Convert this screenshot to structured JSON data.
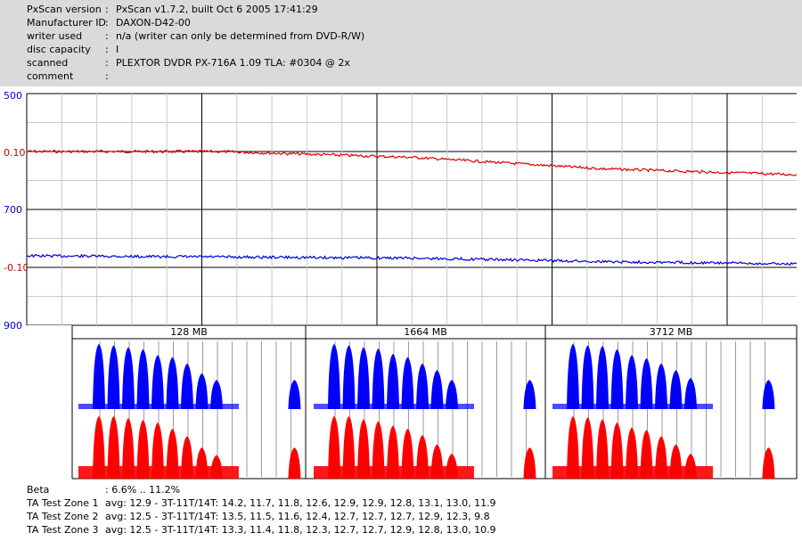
{
  "header": {
    "rows": [
      {
        "label": "PxScan version",
        "value": "PxScan v1.7.2, built Oct  6 2005 17:41:29"
      },
      {
        "label": "Manufacturer ID",
        "value": "DAXON-D42-00"
      },
      {
        "label": "writer used",
        "value": "n/a (writer can only be determined from DVD-R/W)"
      },
      {
        "label": "disc capacity",
        "value": "I"
      },
      {
        "label": "scanned",
        "value": "PLEXTOR DVDR PX-716A 1.09 TLA: #0304 @ 2x"
      },
      {
        "label": "comment",
        "value": ""
      }
    ]
  },
  "chart_data": [
    {
      "type": "line",
      "y_labels": [
        {
          "text": "500",
          "color": "#0000cc"
        },
        {
          "text": "0.10",
          "color": "#cc0000"
        },
        {
          "text": "700",
          "color": "#0000cc"
        },
        {
          "text": "-0.10",
          "color": "#cc0000"
        },
        {
          "text": "900",
          "color": "#0000cc"
        }
      ],
      "series": [
        {
          "color": "#e00000",
          "x": [
            0,
            0.25,
            0.5,
            0.75,
            1.0
          ],
          "y": [
            0.1,
            0.1,
            0.09,
            0.07,
            0.06
          ]
        },
        {
          "color": "#0000e0",
          "x": [
            0,
            0.25,
            0.5,
            0.75,
            1.0
          ],
          "y": [
            780,
            782,
            784,
            790,
            794
          ]
        }
      ],
      "grid": true
    },
    {
      "type": "bar",
      "zones": [
        {
          "label": "128 MB",
          "blue": [
            1.0,
            0.98,
            0.95,
            0.92,
            0.83,
            0.8,
            0.7,
            0.55,
            0.45
          ],
          "red": [
            1.0,
            1.0,
            0.97,
            0.94,
            0.9,
            0.8,
            0.68,
            0.5,
            0.38
          ]
        },
        {
          "label": "1664 MB",
          "blue": [
            1.0,
            0.98,
            0.95,
            0.93,
            0.85,
            0.8,
            0.7,
            0.6,
            0.45
          ],
          "red": [
            1.0,
            1.0,
            0.95,
            0.92,
            0.85,
            0.8,
            0.7,
            0.55,
            0.4
          ]
        },
        {
          "label": "3712 MB",
          "blue": [
            1.0,
            0.98,
            0.97,
            0.92,
            0.83,
            0.78,
            0.7,
            0.6,
            0.48
          ],
          "red": [
            1.0,
            0.98,
            0.95,
            0.9,
            0.82,
            0.78,
            0.68,
            0.55,
            0.4
          ]
        }
      ],
      "colors": {
        "blue": "#0000ff",
        "red": "#ff0000"
      }
    }
  ],
  "footer": {
    "rows": [
      {
        "label": "Beta",
        "value": ": 6.6% .. 11.2%"
      },
      {
        "label": "TA Test Zone 1",
        "value": "avg: 12.9 - 3T-11T/14T: 14.2, 11.7, 11.8, 12.6, 12.9, 12.9, 12.8, 13.1, 13.0, 11.9"
      },
      {
        "label": "TA Test Zone 2",
        "value": "avg: 12.5 - 3T-11T/14T: 13.5, 11.5, 11.6, 12.4, 12.7, 12.7, 12.7, 12.9, 12.3, 9.8"
      },
      {
        "label": "TA Test Zone 3",
        "value": "avg: 12.5 - 3T-11T/14T: 13.3, 11.4, 11.8, 12.3, 12.7, 12.7, 12.9, 12.8, 13.0, 10.9"
      }
    ]
  }
}
